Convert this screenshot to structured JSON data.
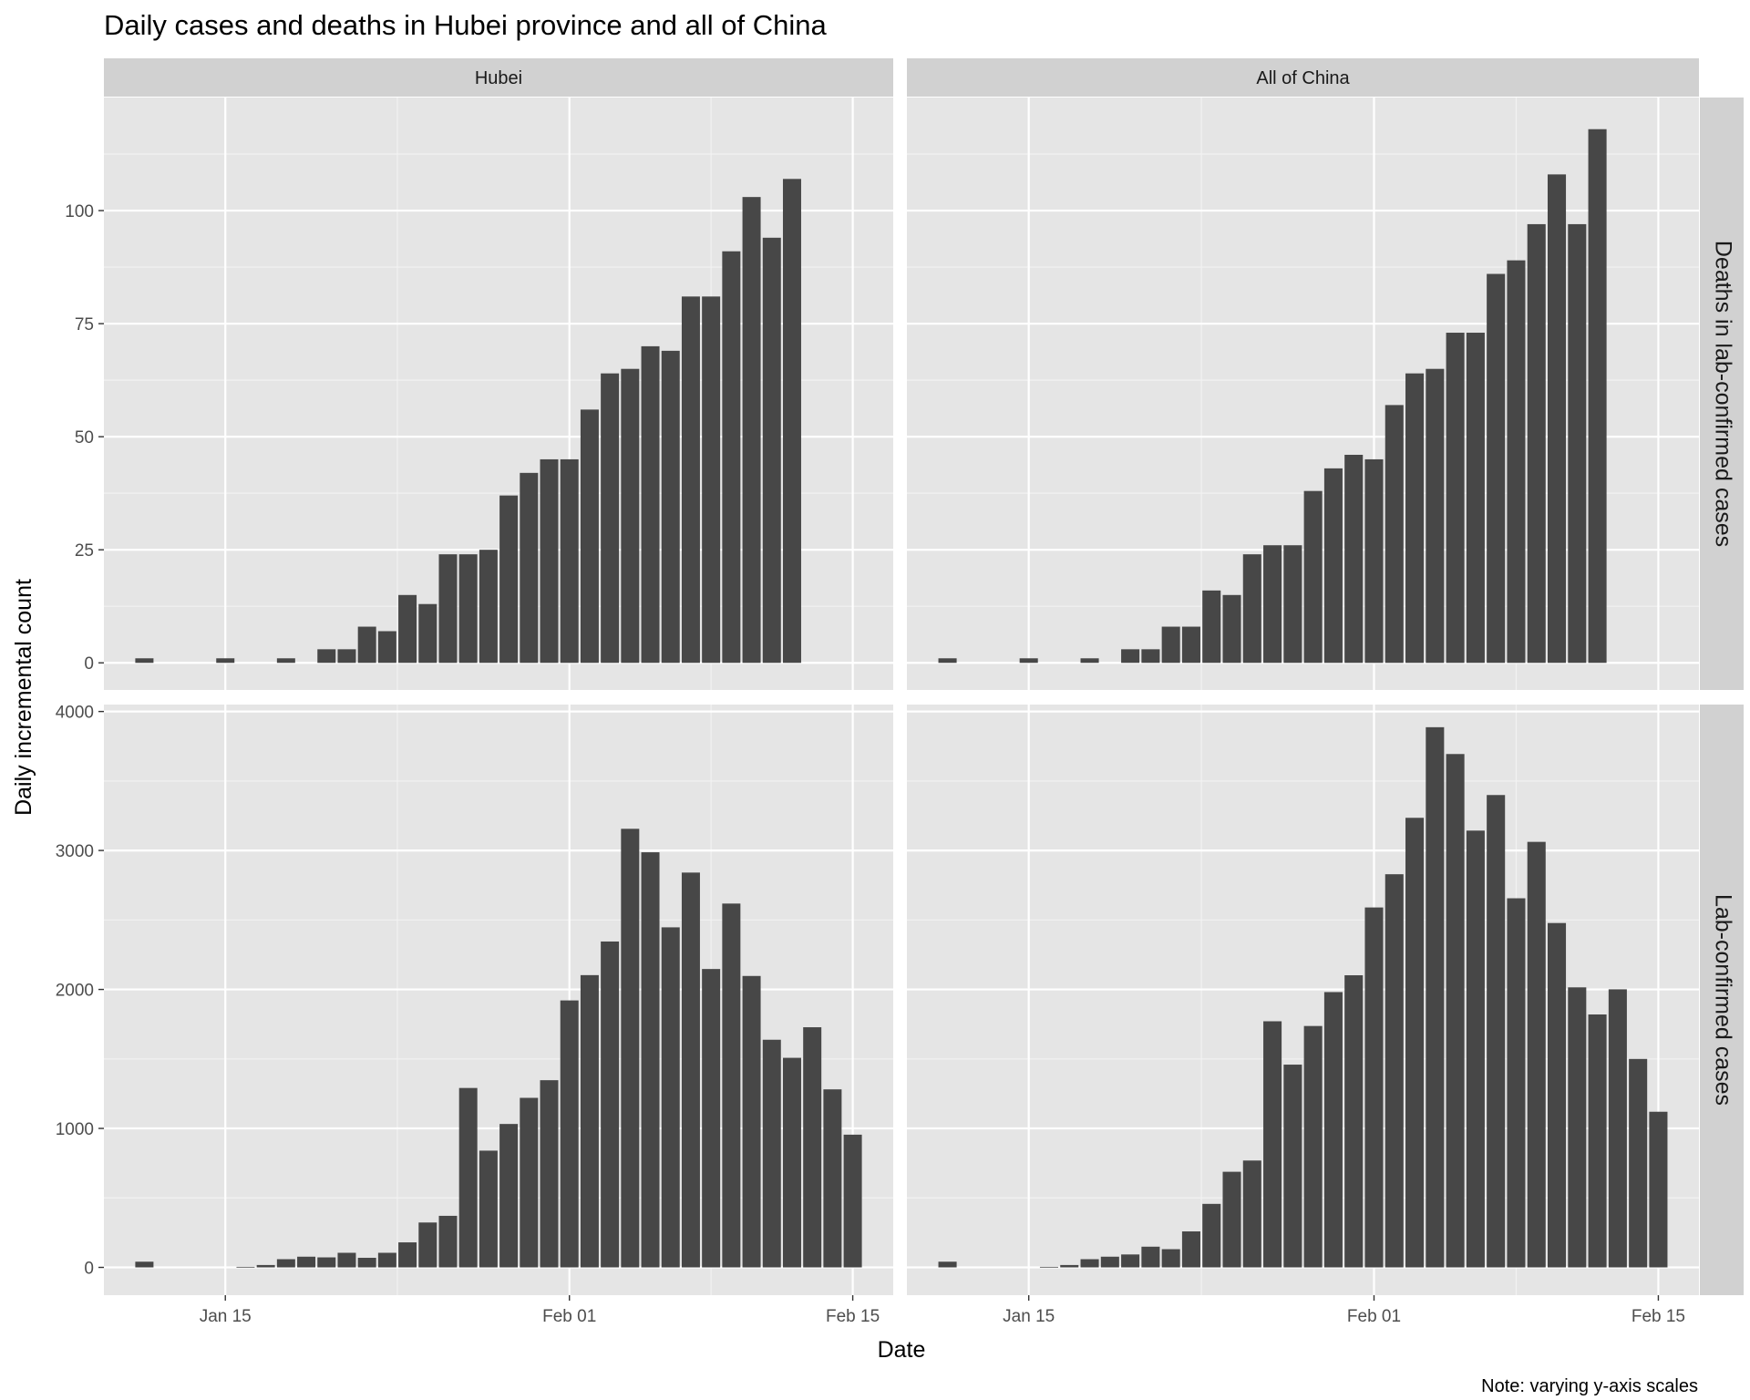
{
  "chart_data": {
    "type": "bar",
    "title": "Daily cases and deaths in Hubei province and all of China",
    "xlabel": "Date",
    "ylabel": "Daily incremental count",
    "caption": "Note: varying y-axis scales",
    "columns": [
      "Hubei",
      "All of China"
    ],
    "rows": [
      "Deaths in lab-confirmed cases",
      "Lab-confirmed cases"
    ],
    "x_range": [
      "2020-01-09",
      "2020-02-17"
    ],
    "x_ticks": [
      {
        "date": "2020-01-15",
        "label": "Jan 15"
      },
      {
        "date": "2020-02-01",
        "label": "Feb 01"
      },
      {
        "date": "2020-02-15",
        "label": "Feb 15"
      }
    ],
    "grid": true,
    "bar_color": "#474747",
    "panel_background": "#e5e5e5",
    "strip_background": "#d1d1d1",
    "panels": [
      {
        "column": "Hubei",
        "row": "Deaths in lab-confirmed cases",
        "ylim": [
          -6,
          125
        ],
        "yticks": [
          0,
          25,
          50,
          75,
          100
        ],
        "bars": [
          [
            "2020-01-11",
            1
          ],
          [
            "2020-01-15",
            1
          ],
          [
            "2020-01-18",
            1
          ],
          [
            "2020-01-20",
            3
          ],
          [
            "2020-01-21",
            3
          ],
          [
            "2020-01-22",
            8
          ],
          [
            "2020-01-23",
            7
          ],
          [
            "2020-01-24",
            15
          ],
          [
            "2020-01-25",
            13
          ],
          [
            "2020-01-26",
            24
          ],
          [
            "2020-01-27",
            24
          ],
          [
            "2020-01-28",
            25
          ],
          [
            "2020-01-29",
            37
          ],
          [
            "2020-01-30",
            42
          ],
          [
            "2020-01-31",
            45
          ],
          [
            "2020-02-01",
            45
          ],
          [
            "2020-02-02",
            56
          ],
          [
            "2020-02-03",
            64
          ],
          [
            "2020-02-04",
            65
          ],
          [
            "2020-02-05",
            70
          ],
          [
            "2020-02-06",
            69
          ],
          [
            "2020-02-07",
            81
          ],
          [
            "2020-02-08",
            81
          ],
          [
            "2020-02-09",
            91
          ],
          [
            "2020-02-10",
            103
          ],
          [
            "2020-02-11",
            94
          ],
          [
            "2020-02-12",
            107
          ]
        ]
      },
      {
        "column": "All of China",
        "row": "Deaths in lab-confirmed cases",
        "ylim": [
          -6,
          125
        ],
        "yticks": [
          0,
          25,
          50,
          75,
          100
        ],
        "bars": [
          [
            "2020-01-11",
            1
          ],
          [
            "2020-01-15",
            1
          ],
          [
            "2020-01-18",
            1
          ],
          [
            "2020-01-20",
            3
          ],
          [
            "2020-01-21",
            3
          ],
          [
            "2020-01-22",
            8
          ],
          [
            "2020-01-23",
            8
          ],
          [
            "2020-01-24",
            16
          ],
          [
            "2020-01-25",
            15
          ],
          [
            "2020-01-26",
            24
          ],
          [
            "2020-01-27",
            26
          ],
          [
            "2020-01-28",
            26
          ],
          [
            "2020-01-29",
            38
          ],
          [
            "2020-01-30",
            43
          ],
          [
            "2020-01-31",
            46
          ],
          [
            "2020-02-01",
            45
          ],
          [
            "2020-02-02",
            57
          ],
          [
            "2020-02-03",
            64
          ],
          [
            "2020-02-04",
            65
          ],
          [
            "2020-02-05",
            73
          ],
          [
            "2020-02-06",
            73
          ],
          [
            "2020-02-07",
            86
          ],
          [
            "2020-02-08",
            89
          ],
          [
            "2020-02-09",
            97
          ],
          [
            "2020-02-10",
            108
          ],
          [
            "2020-02-11",
            97
          ],
          [
            "2020-02-12",
            118
          ]
        ]
      },
      {
        "column": "Hubei",
        "row": "Lab-confirmed cases",
        "ylim": [
          -200,
          4050
        ],
        "yticks": [
          0,
          1000,
          2000,
          3000,
          4000
        ],
        "bars": [
          [
            "2020-01-11",
            41
          ],
          [
            "2020-01-16",
            4
          ],
          [
            "2020-01-17",
            17
          ],
          [
            "2020-01-18",
            59
          ],
          [
            "2020-01-19",
            77
          ],
          [
            "2020-01-20",
            72
          ],
          [
            "2020-01-21",
            105
          ],
          [
            "2020-01-22",
            69
          ],
          [
            "2020-01-23",
            105
          ],
          [
            "2020-01-24",
            180
          ],
          [
            "2020-01-25",
            323
          ],
          [
            "2020-01-26",
            371
          ],
          [
            "2020-01-27",
            1291
          ],
          [
            "2020-01-28",
            840
          ],
          [
            "2020-01-29",
            1032
          ],
          [
            "2020-01-30",
            1220
          ],
          [
            "2020-01-31",
            1347
          ],
          [
            "2020-02-01",
            1921
          ],
          [
            "2020-02-02",
            2103
          ],
          [
            "2020-02-03",
            2345
          ],
          [
            "2020-02-04",
            3156
          ],
          [
            "2020-02-05",
            2987
          ],
          [
            "2020-02-06",
            2447
          ],
          [
            "2020-02-07",
            2841
          ],
          [
            "2020-02-08",
            2147
          ],
          [
            "2020-02-09",
            2618
          ],
          [
            "2020-02-10",
            2097
          ],
          [
            "2020-02-11",
            1638
          ],
          [
            "2020-02-12",
            1508
          ],
          [
            "2020-02-13",
            1728
          ],
          [
            "2020-02-14",
            1281
          ],
          [
            "2020-02-15",
            955
          ]
        ]
      },
      {
        "column": "All of China",
        "row": "Lab-confirmed cases",
        "ylim": [
          -200,
          4050
        ],
        "yticks": [
          0,
          1000,
          2000,
          3000,
          4000
        ],
        "bars": [
          [
            "2020-01-11",
            41
          ],
          [
            "2020-01-16",
            4
          ],
          [
            "2020-01-17",
            17
          ],
          [
            "2020-01-18",
            59
          ],
          [
            "2020-01-19",
            77
          ],
          [
            "2020-01-20",
            93
          ],
          [
            "2020-01-21",
            149
          ],
          [
            "2020-01-22",
            131
          ],
          [
            "2020-01-23",
            259
          ],
          [
            "2020-01-24",
            457
          ],
          [
            "2020-01-25",
            688
          ],
          [
            "2020-01-26",
            769
          ],
          [
            "2020-01-27",
            1771
          ],
          [
            "2020-01-28",
            1459
          ],
          [
            "2020-01-29",
            1737
          ],
          [
            "2020-01-30",
            1981
          ],
          [
            "2020-01-31",
            2102
          ],
          [
            "2020-02-01",
            2590
          ],
          [
            "2020-02-02",
            2829
          ],
          [
            "2020-02-03",
            3235
          ],
          [
            "2020-02-04",
            3887
          ],
          [
            "2020-02-05",
            3694
          ],
          [
            "2020-02-06",
            3143
          ],
          [
            "2020-02-07",
            3399
          ],
          [
            "2020-02-08",
            2656
          ],
          [
            "2020-02-09",
            3062
          ],
          [
            "2020-02-10",
            2478
          ],
          [
            "2020-02-11",
            2015
          ],
          [
            "2020-02-12",
            1820
          ],
          [
            "2020-02-13",
            2001
          ],
          [
            "2020-02-14",
            1500
          ],
          [
            "2020-02-15",
            1120
          ]
        ]
      }
    ]
  }
}
